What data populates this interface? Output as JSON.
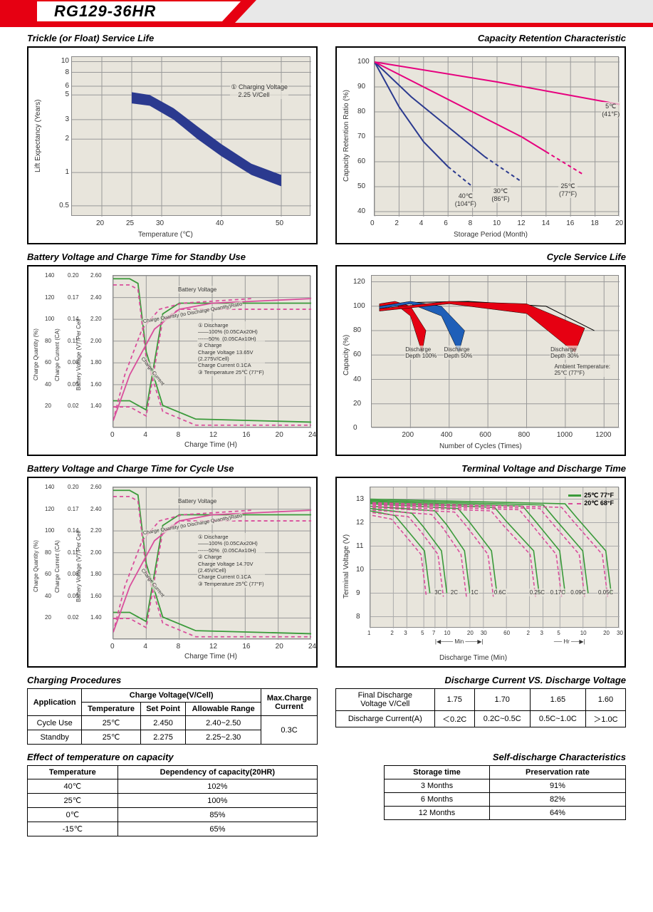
{
  "model": "RG129-36HR",
  "charts": {
    "trickle": {
      "title": "Trickle (or Float) Service Life",
      "xlabel": "Temperature (℃)",
      "ylabel": "Lift  Expectancy (Years)",
      "xticks": [
        20,
        25,
        30,
        40,
        50
      ],
      "yticks": [
        0.5,
        1,
        2,
        3,
        5,
        6,
        8,
        10
      ],
      "band_upper": [
        [
          25,
          5.3
        ],
        [
          28,
          5.0
        ],
        [
          32,
          3.8
        ],
        [
          36,
          2.6
        ],
        [
          40,
          1.8
        ],
        [
          45,
          1.2
        ],
        [
          50,
          0.95
        ]
      ],
      "band_lower": [
        [
          25,
          4.2
        ],
        [
          28,
          4.0
        ],
        [
          32,
          3.0
        ],
        [
          36,
          2.0
        ],
        [
          40,
          1.4
        ],
        [
          45,
          0.95
        ],
        [
          50,
          0.75
        ]
      ],
      "band_color": "#2b3a8f",
      "annot": "① Charging Voltage\n    2.25 V/Cell",
      "grid_color": "#999",
      "bg": "#e8e5dc"
    },
    "capacity_retention": {
      "title": "Capacity Retention Characteristic",
      "xlabel": "Storage Period (Month)",
      "ylabel": "Capacity Retention Ratio (%)",
      "xticks": [
        0,
        2,
        4,
        6,
        8,
        10,
        12,
        14,
        16,
        18,
        20
      ],
      "yticks": [
        40,
        50,
        60,
        70,
        80,
        90,
        100
      ],
      "curves": [
        {
          "label": "40℃\n(104°F)",
          "color": "#2b3a8f",
          "dash": false,
          "pts": [
            [
              0,
              100
            ],
            [
              2,
              82
            ],
            [
              4,
              68
            ],
            [
              6,
              58
            ]
          ],
          "tail_dash": [
            [
              6,
              58
            ],
            [
              8,
              50
            ]
          ]
        },
        {
          "label": "30℃\n(86°F)",
          "color": "#2b3a8f",
          "dash": false,
          "pts": [
            [
              0,
              100
            ],
            [
              3,
              86
            ],
            [
              6,
              74
            ],
            [
              9,
              62
            ]
          ],
          "tail_dash": [
            [
              9,
              62
            ],
            [
              12,
              52
            ]
          ]
        },
        {
          "label": "25℃\n(77°F)",
          "color": "#e6007e",
          "dash": false,
          "pts": [
            [
              0,
              100
            ],
            [
              4,
              90
            ],
            [
              8,
              80
            ],
            [
              12,
              70
            ],
            [
              14,
              64
            ]
          ],
          "tail_dash": [
            [
              14,
              64
            ],
            [
              17,
              55
            ]
          ]
        },
        {
          "label": "5℃\n(41°F)",
          "color": "#e6007e",
          "dash": false,
          "pts": [
            [
              0,
              100
            ],
            [
              10,
              92
            ],
            [
              20,
              83
            ]
          ]
        }
      ],
      "bg": "#e8e5dc"
    },
    "standby_charge": {
      "title": "Battery Voltage and Charge Time for Standby Use",
      "xlabel": "Charge Time (H)",
      "y1label": "Charge Quantity (%)",
      "y2label": "Charge Current (CA)",
      "y3label": "Battery Voltage (V) /Per Cell",
      "xticks": [
        0,
        4,
        8,
        12,
        16,
        20,
        24
      ],
      "y1ticks": [
        20,
        40,
        60,
        80,
        100,
        120,
        140
      ],
      "y2ticks": [
        "0.02",
        "0.05",
        "0.08",
        "0.11",
        "0.14",
        "0.17",
        "0.20"
      ],
      "y3ticks": [
        "1.40",
        "1.60",
        "1.80",
        "2.00",
        "2.20",
        "2.40",
        "2.60"
      ],
      "notes": [
        "Battery Voltage",
        "Charge Quantity (to Discharge Quantity)Ratio",
        "Charge Current",
        "① Discharge",
        "——100% (0.05CAx20H)",
        "------50%  (0.05CAx10H)",
        "② Charge",
        "Charge Voltage 13.65V",
        "(2.275V/Cell)",
        "Charge Current 0.1CA",
        "③ Temperature 25℃ (77°F)"
      ],
      "c_green": "#3a9a3a",
      "c_pink": "#d94e9c"
    },
    "cycle_life": {
      "title": "Cycle Service Life",
      "xlabel": "Number of Cycles (Times)",
      "ylabel": "Capacity (%)",
      "xticks": [
        200,
        400,
        600,
        800,
        1000,
        1200
      ],
      "yticks": [
        0,
        20,
        40,
        60,
        80,
        100,
        120
      ],
      "bands": [
        {
          "label": "Discharge\nDepth 100%",
          "color": "#e60012",
          "pts_u": [
            [
              40,
              102
            ],
            [
              120,
              104
            ],
            [
              200,
              100
            ],
            [
              280,
              80
            ]
          ],
          "pts_l": [
            [
              40,
              100
            ],
            [
              120,
              102
            ],
            [
              200,
              92
            ],
            [
              260,
              62
            ]
          ]
        },
        {
          "label": "Discharge\nDepth 50%",
          "color": "#1f5fb8",
          "pts_u": [
            [
              40,
              100
            ],
            [
              200,
              104
            ],
            [
              360,
              100
            ],
            [
              480,
              80
            ]
          ],
          "pts_l": [
            [
              40,
              98
            ],
            [
              200,
              102
            ],
            [
              360,
              92
            ],
            [
              450,
              62
            ]
          ]
        },
        {
          "label": "Discharge\nDepth 30%",
          "color": "#e60012",
          "pts_u": [
            [
              40,
              98
            ],
            [
              400,
              104
            ],
            [
              800,
              102
            ],
            [
              1100,
              82
            ]
          ],
          "pts_l": [
            [
              40,
              96
            ],
            [
              400,
              102
            ],
            [
              800,
              94
            ],
            [
              1050,
              62
            ]
          ]
        }
      ],
      "annot": "Ambient Temperature:\n25℃ (77°F)",
      "bg": "#e8e5dc"
    },
    "cycle_charge": {
      "title": "Battery Voltage and Charge Time for Cycle Use",
      "xlabel": "Charge Time (H)",
      "same_as": "standby_charge",
      "note_diff": "Charge Voltage 14.70V\n(2.45V/Cell)"
    },
    "terminal_voltage": {
      "title": "Terminal Voltage and Discharge Time",
      "xlabel": "Discharge Time (Min)",
      "ylabel": "Terminal Voltage (V)",
      "xticks_min": [
        1,
        2,
        3,
        5,
        7,
        10,
        20,
        30,
        60
      ],
      "xticks_hr": [
        2,
        3,
        5,
        10,
        20,
        30
      ],
      "yticks": [
        8,
        9,
        10,
        11,
        12,
        13
      ],
      "legend": [
        {
          "c": "#3a9a3a",
          "t": "25℃ 77°F"
        },
        {
          "c": "#d94e9c",
          "dash": true,
          "t": "20℃ 68°F"
        }
      ],
      "rate_labels": [
        "3C",
        "2C",
        "1C",
        "0.6C",
        "0.25C",
        "0.17C",
        "0.09C",
        "0.05C"
      ],
      "sections": [
        "Min",
        "Hr"
      ],
      "bg": "#e8e5dc"
    }
  },
  "tables": {
    "charging_procedures": {
      "title": "Charging Procedures",
      "h1": "Application",
      "h2": "Charge Voltage(V/Cell)",
      "h3": "Max.Charge\nCurrent",
      "sub": [
        "Temperature",
        "Set Point",
        "Allowable Range"
      ],
      "rows": [
        [
          "Cycle Use",
          "25℃",
          "2.450",
          "2.40~2.50"
        ],
        [
          "Standby",
          "25℃",
          "2.275",
          "2.25~2.30"
        ]
      ],
      "max_current": "0.3C"
    },
    "discharge_vs": {
      "title": "Discharge Current VS. Discharge Voltage",
      "h1": "Final Discharge\nVoltage V/Cell",
      "h2": "Discharge Current(A)",
      "vcols": [
        "1.75",
        "1.70",
        "1.65",
        "1.60"
      ],
      "acols": [
        "＜0.2C",
        "0.2C~0.5C",
        "0.5C~1.0C",
        "＞1.0C"
      ]
    },
    "temp_capacity": {
      "title": "Effect of temperature on capacity",
      "cols": [
        "Temperature",
        "Dependency of capacity(20HR)"
      ],
      "rows": [
        [
          "40℃",
          "102%"
        ],
        [
          "25℃",
          "100%"
        ],
        [
          "0℃",
          "85%"
        ],
        [
          "-15℃",
          "65%"
        ]
      ]
    },
    "self_discharge": {
      "title": "Self-discharge Characteristics",
      "cols": [
        "Storage time",
        "Preservation rate"
      ],
      "rows": [
        [
          "3 Months",
          "91%"
        ],
        [
          "6 Months",
          "82%"
        ],
        [
          "12 Months",
          "64%"
        ]
      ]
    }
  }
}
